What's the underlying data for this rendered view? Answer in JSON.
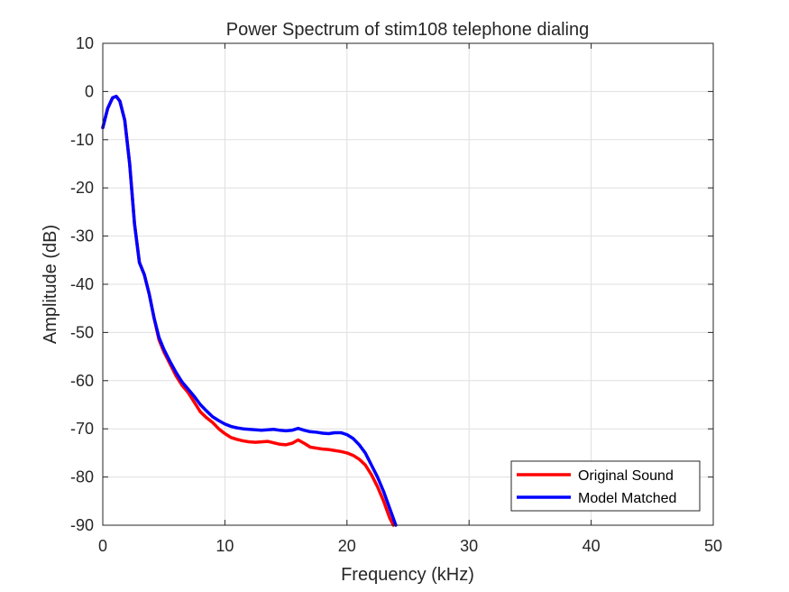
{
  "chart_data": {
    "type": "line",
    "title": "Power Spectrum of stim108 telephone dialing",
    "xlabel": "Frequency (kHz)",
    "ylabel": "Amplitude (dB)",
    "xlim": [
      0,
      50
    ],
    "ylim": [
      -90,
      10
    ],
    "xticks": [
      0,
      10,
      20,
      30,
      40,
      50
    ],
    "yticks": [
      -90,
      -80,
      -70,
      -60,
      -50,
      -40,
      -30,
      -20,
      -10,
      0,
      10
    ],
    "grid": true,
    "legend_position": "bottom-right",
    "series": [
      {
        "name": "Original Sound",
        "color": "#ff0000",
        "x": [
          0,
          0.4,
          0.8,
          1.1,
          1.4,
          1.8,
          2.2,
          2.6,
          3.0,
          3.4,
          3.8,
          4.2,
          4.6,
          5.0,
          5.5,
          6.0,
          6.5,
          7.0,
          7.5,
          8.0,
          8.5,
          9.0,
          9.5,
          10.0,
          10.5,
          11.0,
          11.5,
          12.0,
          12.5,
          13.0,
          13.5,
          14.0,
          14.5,
          15.0,
          15.5,
          16.0,
          16.5,
          17.0,
          17.5,
          18.0,
          18.5,
          19.0,
          19.5,
          20.0,
          20.5,
          21.0,
          21.5,
          22.0,
          22.5,
          23.0,
          23.5,
          23.8
        ],
        "values": [
          -7.5,
          -3.5,
          -1.3,
          -1.0,
          -2.0,
          -6.0,
          -15.0,
          -27.5,
          -35.5,
          -38.0,
          -42.0,
          -47.0,
          -51.5,
          -54.0,
          -56.5,
          -59.0,
          -61.0,
          -62.5,
          -64.5,
          -66.5,
          -67.7,
          -68.7,
          -70.0,
          -71.0,
          -71.8,
          -72.2,
          -72.5,
          -72.7,
          -72.8,
          -72.7,
          -72.6,
          -72.9,
          -73.2,
          -73.3,
          -73.0,
          -72.3,
          -73.0,
          -73.8,
          -74.0,
          -74.2,
          -74.3,
          -74.5,
          -74.7,
          -75.0,
          -75.5,
          -76.3,
          -77.5,
          -79.5,
          -82.0,
          -85.0,
          -88.5,
          -90.0
        ]
      },
      {
        "name": "Model Matched",
        "color": "#0000ff",
        "x": [
          0,
          0.4,
          0.8,
          1.1,
          1.4,
          1.8,
          2.2,
          2.6,
          3.0,
          3.4,
          3.8,
          4.2,
          4.6,
          5.0,
          5.5,
          6.0,
          6.5,
          7.0,
          7.5,
          8.0,
          8.5,
          9.0,
          9.5,
          10.0,
          10.5,
          11.0,
          11.5,
          12.0,
          12.5,
          13.0,
          13.5,
          14.0,
          14.5,
          15.0,
          15.5,
          16.0,
          16.5,
          17.0,
          17.5,
          18.0,
          18.5,
          19.0,
          19.5,
          20.0,
          20.5,
          21.0,
          21.5,
          22.0,
          22.5,
          23.0,
          23.5,
          24.0
        ],
        "values": [
          -7.5,
          -3.5,
          -1.3,
          -1.0,
          -2.0,
          -6.0,
          -15.0,
          -27.5,
          -35.5,
          -38.0,
          -42.0,
          -47.0,
          -51.0,
          -53.5,
          -56.0,
          -58.3,
          -60.3,
          -61.8,
          -63.3,
          -65.0,
          -66.3,
          -67.5,
          -68.3,
          -69.0,
          -69.5,
          -69.8,
          -70.0,
          -70.1,
          -70.2,
          -70.3,
          -70.2,
          -70.1,
          -70.3,
          -70.4,
          -70.3,
          -69.9,
          -70.3,
          -70.6,
          -70.7,
          -70.9,
          -71.0,
          -70.8,
          -70.8,
          -71.2,
          -72.0,
          -73.3,
          -75.0,
          -77.5,
          -80.0,
          -83.0,
          -86.5,
          -90.0
        ]
      }
    ]
  }
}
